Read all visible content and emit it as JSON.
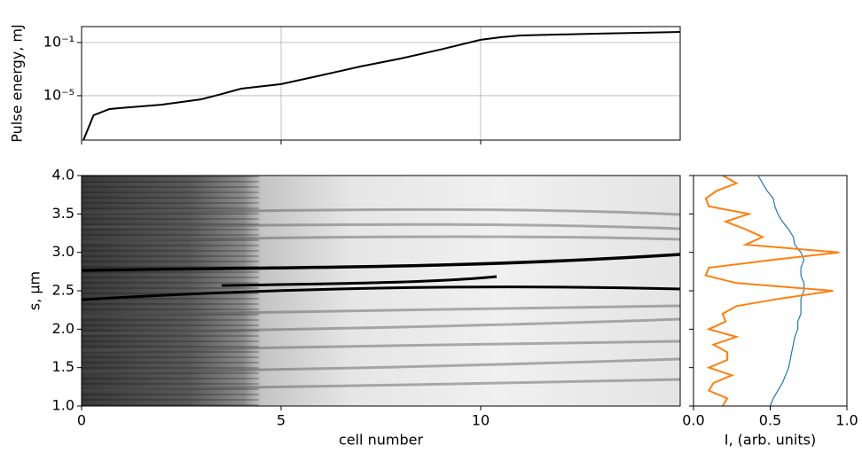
{
  "chart_data": [
    {
      "type": "line",
      "ylabel": "Pulse energy, mJ",
      "log_y": true,
      "grid": true,
      "show_xtick_labels": false,
      "x": [
        0.05,
        0.3,
        0.7,
        1,
        2,
        3,
        3.5,
        4,
        5,
        6,
        7,
        8,
        9,
        10,
        10.5,
        11,
        12,
        13,
        14,
        15
      ],
      "values": [
        5e-09,
        3.4e-07,
        1e-06,
        1.2e-06,
        2.1e-06,
        5.4e-06,
        1.3e-05,
        3.4e-05,
        7.4e-05,
        0.00034,
        0.0016,
        0.0063,
        0.03,
        0.16,
        0.25,
        0.34,
        0.4,
        0.47,
        0.54,
        0.63
      ],
      "color": "#000000",
      "xlim": [
        0,
        15
      ],
      "xticks": [
        0,
        5,
        10
      ],
      "ylim": [
        4.6e-09,
        1.58
      ],
      "yticks": [
        {
          "value": 0.1,
          "label": "10⁻¹"
        },
        {
          "value": 1e-05,
          "label": "10⁻⁵"
        }
      ]
    },
    {
      "type": "heatmap",
      "xlabel": "cell number",
      "ylabel": "s, μm",
      "xlim": [
        0,
        15
      ],
      "xticks": [
        0,
        5,
        10
      ],
      "ylim": [
        1,
        4
      ],
      "yticks": [
        {
          "value": 1,
          "label": "1.0"
        },
        {
          "value": 1.5,
          "label": "1.5"
        },
        {
          "value": 2,
          "label": "2.0"
        },
        {
          "value": 2.5,
          "label": "2.5"
        },
        {
          "value": 3,
          "label": "3.0"
        },
        {
          "value": 3.5,
          "label": "3.5"
        },
        {
          "value": 4,
          "label": "4.0"
        }
      ]
    },
    {
      "type": "profile",
      "xlabel": "I, (arb. units)",
      "show_ytick_labels": false,
      "s": [
        4.0,
        3.9,
        3.8,
        3.7,
        3.6,
        3.5,
        3.4,
        3.3,
        3.2,
        3.1,
        3.0,
        2.9,
        2.8,
        2.7,
        2.6,
        2.5,
        2.4,
        2.3,
        2.2,
        2.1,
        2.0,
        1.9,
        1.8,
        1.7,
        1.6,
        1.5,
        1.4,
        1.3,
        1.2,
        1.1,
        1.0
      ],
      "series": [
        {
          "color": "#1f77b4",
          "values": [
            0.42,
            0.45,
            0.48,
            0.52,
            0.53,
            0.55,
            0.58,
            0.62,
            0.65,
            0.66,
            0.7,
            0.72,
            0.7,
            0.7,
            0.72,
            0.72,
            0.7,
            0.7,
            0.7,
            0.68,
            0.68,
            0.66,
            0.65,
            0.64,
            0.63,
            0.62,
            0.6,
            0.58,
            0.55,
            0.52,
            0.5
          ]
        },
        {
          "color": "#ff7f0e",
          "values": [
            0.19,
            0.28,
            0.15,
            0.08,
            0.1,
            0.36,
            0.21,
            0.34,
            0.45,
            0.34,
            0.95,
            0.51,
            0.1,
            0.08,
            0.28,
            0.91,
            0.57,
            0.28,
            0.19,
            0.21,
            0.1,
            0.28,
            0.13,
            0.22,
            0.22,
            0.1,
            0.25,
            0.13,
            0.1,
            0.22,
            0.19
          ]
        }
      ],
      "xlim": [
        0,
        1
      ],
      "xticks": [
        {
          "value": 0,
          "label": "0.0"
        },
        {
          "value": 0.5,
          "label": "0.5"
        },
        {
          "value": 1,
          "label": "1.0"
        }
      ],
      "ylim": [
        1,
        4
      ],
      "yticks": [
        1,
        1.5,
        2,
        2.5,
        3,
        3.5,
        4
      ]
    }
  ]
}
